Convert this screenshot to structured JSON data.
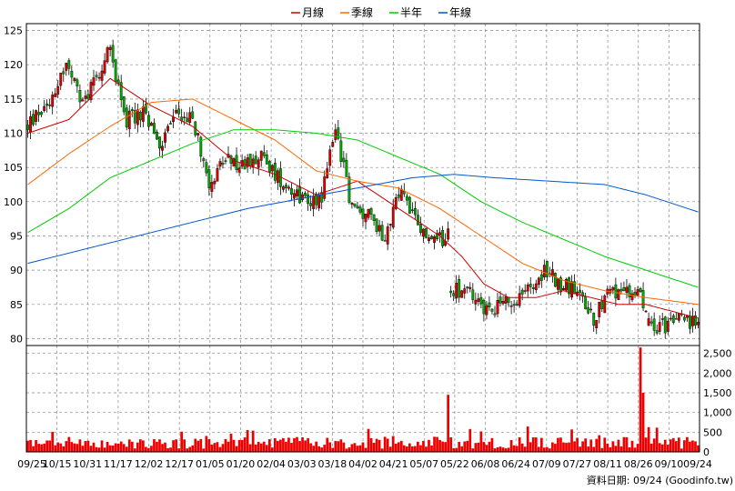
{
  "chart_data": {
    "type": "candlestick",
    "title": "",
    "legend": {
      "placement": "top-center",
      "entries": [
        {
          "name": "月線",
          "color": "#cc0000"
        },
        {
          "name": "季線",
          "color": "#ff6600"
        },
        {
          "name": "半年",
          "color": "#00cc00"
        },
        {
          "name": "年線",
          "color": "#0055cc"
        }
      ]
    },
    "price_axis": {
      "ylim": [
        79,
        126
      ],
      "ticks": [
        80,
        85,
        90,
        95,
        100,
        105,
        110,
        115,
        120,
        125
      ],
      "side": "left",
      "grid": true
    },
    "volume_axis": {
      "ylim": [
        0,
        2700
      ],
      "ticks": [
        0,
        500,
        1000,
        1500,
        2000,
        2500
      ],
      "tick_labels": [
        "0",
        "500",
        "1,000",
        "1,500",
        "2,000",
        "2,500"
      ],
      "side": "right"
    },
    "x_tick_labels": [
      "09/25",
      "10/15",
      "10/31",
      "11/17",
      "12/02",
      "12/17",
      "01/05",
      "01/20",
      "02/04",
      "03/03",
      "03/18",
      "04/02",
      "04/21",
      "05/07",
      "05/22",
      "06/08",
      "06/24",
      "07/09",
      "07/27",
      "08/11",
      "08/26",
      "09/10",
      "09/24"
    ],
    "bar_count": 245,
    "price_anchors": [
      [
        0,
        111
      ],
      [
        8,
        115
      ],
      [
        14,
        120
      ],
      [
        20,
        114
      ],
      [
        24,
        118
      ],
      [
        30,
        122
      ],
      [
        36,
        112
      ],
      [
        42,
        113
      ],
      [
        48,
        108
      ],
      [
        54,
        113
      ],
      [
        60,
        112
      ],
      [
        66,
        103
      ],
      [
        72,
        106
      ],
      [
        78,
        105
      ],
      [
        84,
        107
      ],
      [
        90,
        104
      ],
      [
        96,
        102
      ],
      [
        102,
        100
      ],
      [
        107,
        101
      ],
      [
        112,
        111
      ],
      [
        118,
        99
      ],
      [
        124,
        98
      ],
      [
        130,
        95
      ],
      [
        136,
        102
      ],
      [
        142,
        96
      ],
      [
        148,
        94
      ],
      [
        153,
        95
      ],
      [
        154,
        87
      ],
      [
        160,
        87
      ],
      [
        166,
        84
      ],
      [
        172,
        85
      ],
      [
        178,
        86
      ],
      [
        184,
        88
      ],
      [
        188,
        90
      ],
      [
        194,
        88
      ],
      [
        200,
        87
      ],
      [
        206,
        83
      ],
      [
        212,
        88
      ],
      [
        216,
        86
      ],
      [
        222,
        87
      ],
      [
        226,
        82
      ],
      [
        232,
        82
      ],
      [
        238,
        83
      ],
      [
        244,
        82
      ]
    ],
    "volume_spikes": [
      {
        "index": 153,
        "value": 1450
      },
      {
        "index": 223,
        "value": 2650
      },
      {
        "index": 224,
        "value": 1500
      }
    ],
    "moving_averages": {
      "month": [
        [
          0,
          110
        ],
        [
          15,
          112
        ],
        [
          30,
          118
        ],
        [
          45,
          114
        ],
        [
          60,
          111
        ],
        [
          75,
          106
        ],
        [
          90,
          104
        ],
        [
          105,
          101
        ],
        [
          120,
          103
        ],
        [
          135,
          99
        ],
        [
          150,
          95
        ],
        [
          158,
          92
        ],
        [
          166,
          88
        ],
        [
          175,
          86
        ],
        [
          185,
          86
        ],
        [
          195,
          87
        ],
        [
          205,
          86
        ],
        [
          215,
          85
        ],
        [
          225,
          85
        ],
        [
          244,
          83
        ]
      ],
      "quarter": [
        [
          0,
          102.5
        ],
        [
          15,
          107
        ],
        [
          30,
          111
        ],
        [
          45,
          114.5
        ],
        [
          60,
          115
        ],
        [
          75,
          112
        ],
        [
          90,
          109
        ],
        [
          105,
          104.5
        ],
        [
          120,
          103
        ],
        [
          135,
          102
        ],
        [
          150,
          99
        ],
        [
          165,
          95
        ],
        [
          180,
          91
        ],
        [
          195,
          88.5
        ],
        [
          210,
          87
        ],
        [
          225,
          86
        ],
        [
          244,
          85
        ]
      ],
      "half": [
        [
          0,
          95.5
        ],
        [
          15,
          99
        ],
        [
          30,
          103.5
        ],
        [
          45,
          106
        ],
        [
          60,
          108.5
        ],
        [
          75,
          110.5
        ],
        [
          90,
          110.5
        ],
        [
          105,
          110
        ],
        [
          120,
          109
        ],
        [
          135,
          106.5
        ],
        [
          150,
          104
        ],
        [
          165,
          100
        ],
        [
          180,
          97
        ],
        [
          195,
          94.5
        ],
        [
          210,
          92
        ],
        [
          225,
          90
        ],
        [
          244,
          87.5
        ]
      ],
      "year": [
        [
          0,
          91
        ],
        [
          20,
          93
        ],
        [
          40,
          95
        ],
        [
          60,
          97
        ],
        [
          80,
          99
        ],
        [
          100,
          100.5
        ],
        [
          120,
          102
        ],
        [
          140,
          103.5
        ],
        [
          155,
          104
        ],
        [
          170,
          103.5
        ],
        [
          190,
          103
        ],
        [
          210,
          102.5
        ],
        [
          225,
          101
        ],
        [
          244,
          98.5
        ]
      ]
    },
    "source_note": "資料日期: 09/24 (Goodinfo.tw)"
  }
}
